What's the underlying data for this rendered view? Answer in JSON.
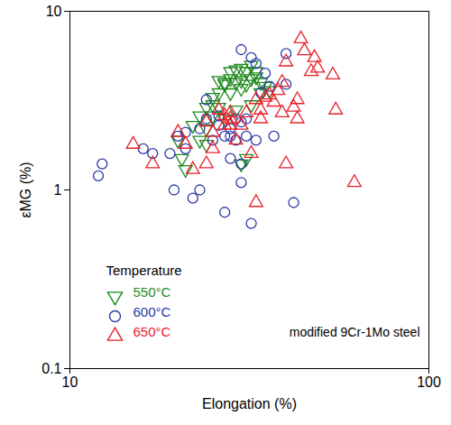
{
  "chart_data": {
    "type": "scatter",
    "x_label": "Elongation (%)",
    "y_label": "εMG (%)",
    "log": true,
    "xlim": [
      10,
      100
    ],
    "ylim": [
      0.1,
      10
    ],
    "xticks": [
      10,
      100
    ],
    "yticks": [
      0.1,
      1,
      10
    ],
    "legend_title": "Temperature",
    "legend": "lower left",
    "annotation": "modified 9Cr-1Mo steel",
    "series": [
      {
        "name": "550°C",
        "color": "#1e8a1e",
        "marker": "triangle-down",
        "x": [
          20,
          20.5,
          21,
          22,
          23,
          24,
          24,
          25,
          25,
          26,
          26,
          27,
          27,
          28,
          28,
          28,
          29,
          29,
          29,
          30,
          30,
          30,
          31,
          31,
          31,
          32,
          32,
          33,
          33,
          34,
          35,
          36,
          30,
          27,
          26,
          23,
          24,
          25,
          32,
          34
        ],
        "values": [
          1.9,
          1.5,
          1.3,
          2.3,
          2.6,
          2.9,
          2.2,
          3.0,
          2.6,
          3.5,
          4.1,
          4.0,
          3.9,
          4.2,
          4.6,
          3.5,
          4.0,
          4.7,
          2.8,
          4.1,
          3.7,
          1.4,
          3.9,
          4.6,
          1.5,
          4.2,
          3.0,
          4.6,
          4.3,
          4.0,
          3.8,
          3.6,
          4.8,
          2.5,
          2.9,
          1.9,
          1.8,
          3.3,
          5.0,
          3.5
        ]
      },
      {
        "name": "600°C",
        "color": "#2a3aa8",
        "marker": "circle",
        "x": [
          12,
          12.3,
          16,
          17,
          19,
          19.5,
          20,
          21,
          21,
          22,
          23,
          23,
          24,
          24,
          25,
          26,
          26,
          27,
          27,
          28,
          28,
          29,
          29,
          30,
          30,
          30,
          30,
          31,
          31,
          32,
          32,
          33,
          33,
          34,
          36,
          37,
          40,
          40,
          42,
          35,
          28
        ],
        "values": [
          1.2,
          1.4,
          1.7,
          1.6,
          1.6,
          1.0,
          2.0,
          2.1,
          1.7,
          0.9,
          2.2,
          1.0,
          3.2,
          2.5,
          1.9,
          2.3,
          2.6,
          0.75,
          2.0,
          2.2,
          2.0,
          2.5,
          1.9,
          6.1,
          2.4,
          1.4,
          1.1,
          2.5,
          2.0,
          5.5,
          0.65,
          5.1,
          1.9,
          3.5,
          3.8,
          2.0,
          5.8,
          3.9,
          0.85,
          4.5,
          1.5
        ]
      },
      {
        "name": "650°C",
        "color": "#e8202a",
        "marker": "triangle",
        "x": [
          15,
          17,
          20,
          21,
          22,
          24,
          24,
          25,
          25,
          26,
          27,
          27,
          28,
          28,
          28,
          29,
          30,
          32,
          33,
          33,
          34,
          35,
          36,
          37,
          38,
          39,
          39,
          40,
          40,
          42,
          43,
          43,
          44,
          45,
          47,
          48,
          49,
          54,
          55,
          62,
          34,
          31
        ],
        "values": [
          1.8,
          1.4,
          2.1,
          1.8,
          1.3,
          1.4,
          2.4,
          2.1,
          1.7,
          2.8,
          2.6,
          2.3,
          2.5,
          2.3,
          2.7,
          1.9,
          2.3,
          1.6,
          3.2,
          0.85,
          2.8,
          3.3,
          3.4,
          3.1,
          3.6,
          4.0,
          2.7,
          5.2,
          1.4,
          2.9,
          3.2,
          2.5,
          7.0,
          6.0,
          4.6,
          5.5,
          4.8,
          4.4,
          2.8,
          1.1,
          2.5,
          2.7
        ]
      }
    ]
  }
}
